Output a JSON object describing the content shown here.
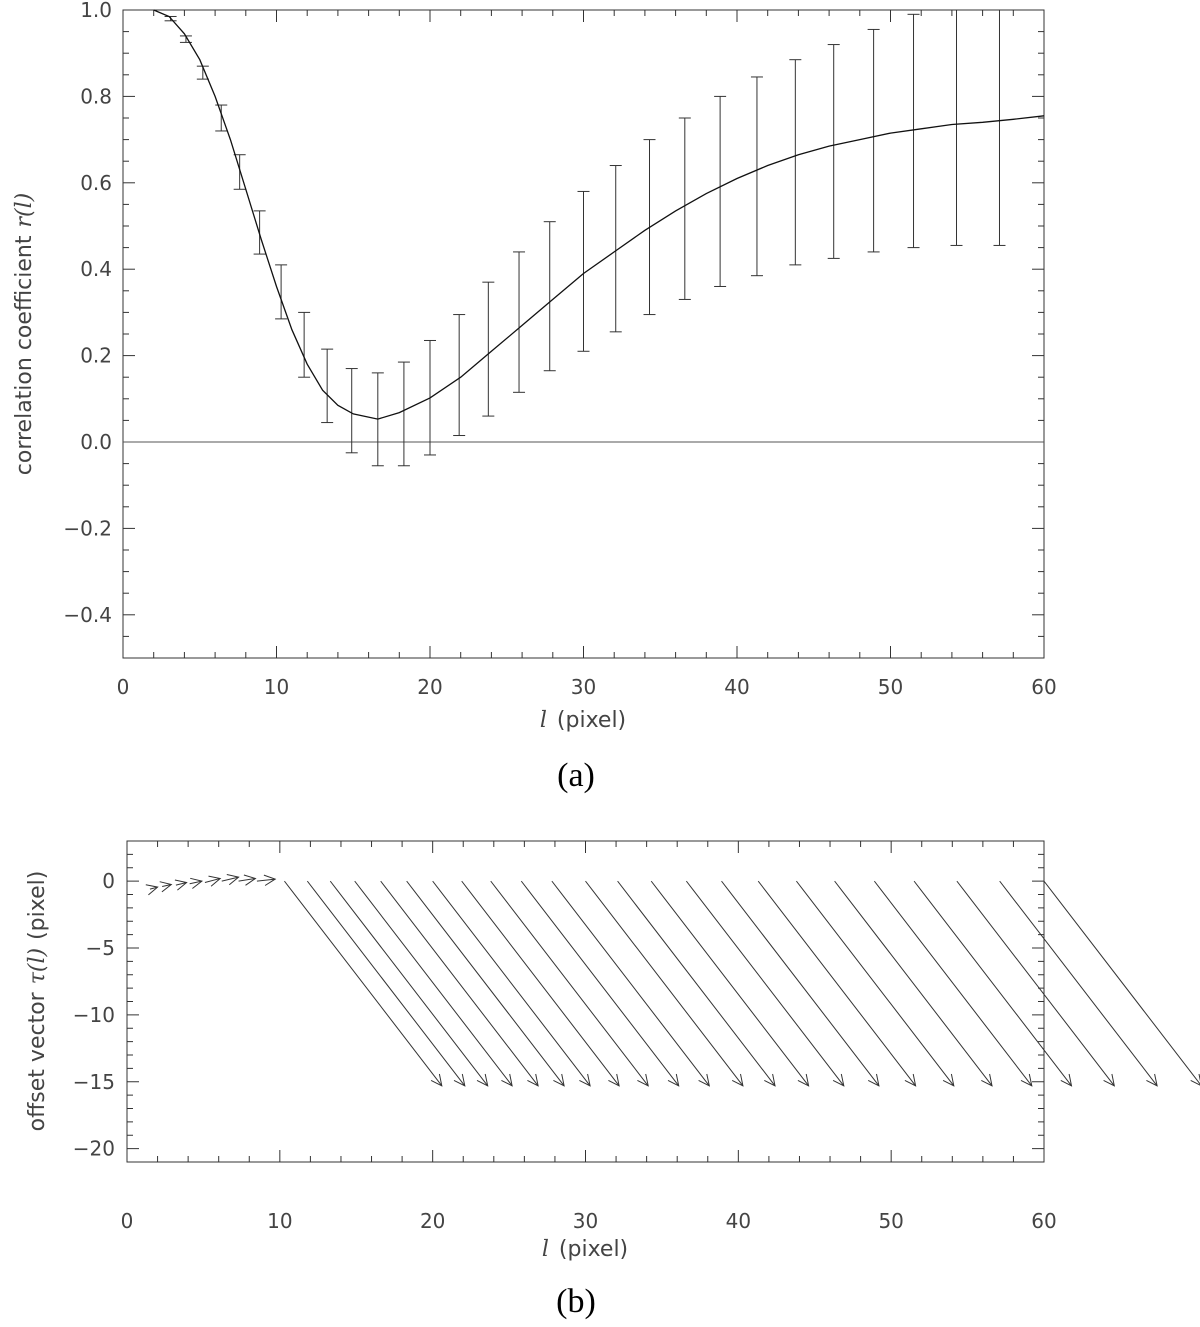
{
  "chart_data": [
    {
      "type": "line",
      "panel_label": "(a)",
      "xlabel_var": "l",
      "xlabel_unit": "(pixel)",
      "ylabel_prefix": "correlation coefficient",
      "ylabel_var": "r(l)",
      "xlim": [
        0,
        60
      ],
      "ylim": [
        -0.5,
        1.0
      ],
      "xticks": [
        0,
        10,
        20,
        30,
        40,
        50,
        60
      ],
      "xtick_labels": [
        "0",
        "10",
        "20",
        "30",
        "40",
        "50",
        "60"
      ],
      "yticks": [
        1.0,
        0.8,
        0.6,
        0.4,
        0.2,
        0.0,
        -0.2,
        -0.4
      ],
      "ytick_labels": [
        "1.0",
        "0.8",
        "0.6",
        "0.4",
        "0.2",
        "0.0",
        "−0.2",
        "−0.4"
      ],
      "curve": {
        "x": [
          2,
          3,
          4,
          5,
          6,
          7,
          8,
          9,
          10,
          11,
          12,
          13,
          14,
          15,
          16.6,
          18,
          20,
          22,
          24,
          26,
          28,
          30,
          32,
          34,
          36,
          38,
          40,
          42,
          44,
          46,
          48,
          50,
          52,
          54,
          56,
          58,
          60
        ],
        "y": [
          1.0,
          0.985,
          0.945,
          0.885,
          0.8,
          0.7,
          0.585,
          0.47,
          0.36,
          0.26,
          0.18,
          0.12,
          0.085,
          0.065,
          0.053,
          0.068,
          0.102,
          0.15,
          0.21,
          0.27,
          0.33,
          0.39,
          0.44,
          0.49,
          0.535,
          0.575,
          0.61,
          0.64,
          0.665,
          0.685,
          0.7,
          0.715,
          0.725,
          0.735,
          0.74,
          0.747,
          0.755
        ]
      },
      "errorbars": {
        "x": [
          3.1,
          4.1,
          5.2,
          6.4,
          7.6,
          8.9,
          10.3,
          11.8,
          13.3,
          14.9,
          16.6,
          18.3,
          20.0,
          21.9,
          23.8,
          25.8,
          27.8,
          30.0,
          32.1,
          34.3,
          36.6,
          38.9,
          41.3,
          43.8,
          46.3,
          48.9,
          51.5,
          54.3,
          57.1
        ],
        "low": [
          0.975,
          0.925,
          0.84,
          0.72,
          0.585,
          0.435,
          0.285,
          0.15,
          0.045,
          -0.025,
          -0.055,
          -0.055,
          -0.03,
          0.015,
          0.06,
          0.115,
          0.165,
          0.21,
          0.255,
          0.295,
          0.33,
          0.36,
          0.385,
          0.41,
          0.425,
          0.44,
          0.45,
          0.455,
          0.455
        ],
        "high": [
          0.985,
          0.94,
          0.87,
          0.78,
          0.665,
          0.535,
          0.41,
          0.3,
          0.215,
          0.17,
          0.16,
          0.185,
          0.235,
          0.295,
          0.37,
          0.44,
          0.51,
          0.58,
          0.64,
          0.7,
          0.75,
          0.8,
          0.845,
          0.885,
          0.92,
          0.955,
          0.99,
          1.0,
          1.0
        ]
      }
    },
    {
      "type": "vector",
      "panel_label": "(b)",
      "xlabel_var": "l",
      "xlabel_unit": "(pixel)",
      "ylabel_prefix": "offset vector",
      "ylabel_var": "τ(l)",
      "ylabel_unit": "(pixel)",
      "xlim": [
        0,
        60
      ],
      "ylim": [
        -21,
        3
      ],
      "xticks": [
        0,
        10,
        20,
        30,
        40,
        50,
        60
      ],
      "xtick_labels": [
        "0",
        "10",
        "20",
        "30",
        "40",
        "50",
        "60"
      ],
      "yticks": [
        0,
        -5,
        -10,
        -15,
        -20
      ],
      "ytick_labels": [
        "0",
        "−5",
        "−10",
        "−15",
        "−20"
      ],
      "vectors": {
        "x": [
          1.5,
          2.3,
          3.2,
          4.1,
          5.1,
          6.2,
          7.3,
          8.5,
          10.3,
          11.8,
          13.3,
          14.9,
          16.6,
          18.3,
          20.0,
          21.9,
          23.8,
          25.8,
          27.8,
          30.0,
          32.1,
          34.3,
          36.6,
          38.9,
          41.3,
          43.8,
          46.3,
          48.9,
          51.5,
          54.3,
          57.1,
          60.0
        ],
        "y": [
          -0.6,
          -0.4,
          -0.3,
          -0.2,
          -0.1,
          0,
          0,
          0,
          0,
          0,
          0,
          0,
          0,
          0,
          0,
          0,
          0,
          0,
          0,
          0,
          0,
          0,
          0,
          0,
          0,
          0,
          0,
          0,
          0,
          0,
          0,
          0
        ],
        "dx": [
          0.5,
          0.6,
          0.7,
          0.8,
          1.0,
          1.1,
          1.1,
          1.2,
          10.3,
          10.3,
          10.3,
          10.3,
          10.3,
          10.3,
          10.3,
          10.3,
          10.3,
          10.3,
          10.3,
          10.3,
          10.3,
          10.3,
          10.3,
          10.3,
          10.3,
          10.3,
          10.3,
          10.3,
          10.3,
          10.3,
          10.3,
          10.3
        ],
        "dy": [
          0.15,
          0.15,
          0.2,
          0.2,
          0.3,
          0.3,
          0.2,
          0.15,
          -15.3,
          -15.3,
          -15.3,
          -15.3,
          -15.3,
          -15.3,
          -15.3,
          -15.3,
          -15.3,
          -15.3,
          -15.3,
          -15.3,
          -15.3,
          -15.3,
          -15.3,
          -15.3,
          -15.3,
          -15.3,
          -15.3,
          -15.3,
          -15.3,
          -15.3,
          -15.3,
          -15.3
        ]
      }
    }
  ]
}
